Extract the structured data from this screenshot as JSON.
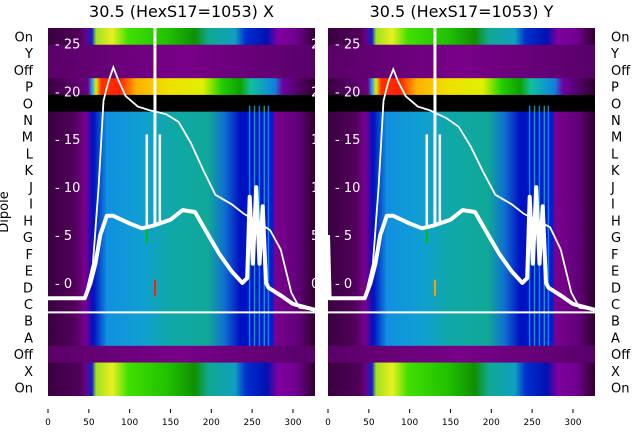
{
  "chart_data": {
    "type": "heatmap",
    "ylabel": "Dipole",
    "row_labels": [
      "On",
      "Y",
      "Off",
      "P",
      "O",
      "N",
      "M",
      "L",
      "K",
      "J",
      "I",
      "H",
      "G",
      "F",
      "E",
      "D",
      "C",
      "B",
      "A",
      "Off",
      "X",
      "On"
    ],
    "row_types": [
      "bright",
      "purple",
      "purple",
      "hot",
      "black",
      "mid",
      "mid",
      "mid",
      "mid",
      "mid",
      "mid",
      "mid",
      "mid",
      "mid",
      "mid",
      "mid",
      "mid",
      "mid",
      "mid",
      "purple",
      "bright",
      "bright"
    ],
    "xlim": [
      0,
      327
    ],
    "xticks": [
      "0",
      "50",
      "100",
      "150",
      "200",
      "250",
      "300"
    ],
    "xtick_values": [
      0,
      50,
      100,
      150,
      200,
      250,
      300
    ],
    "overlay_ylim": [
      -11.8,
      26.6
    ],
    "overlay_yticks": [
      "0",
      "5",
      "10",
      "15",
      "20",
      "25"
    ],
    "overlay_ytick_values": [
      0,
      5,
      10,
      15,
      20,
      25
    ],
    "panels": [
      {
        "title": "30.5 (HexS17=1053) X",
        "thin_line": [
          [
            0,
            -1.6
          ],
          [
            45,
            -1.6
          ],
          [
            55,
            2
          ],
          [
            62,
            10
          ],
          [
            68,
            19
          ],
          [
            74,
            21
          ],
          [
            80,
            22.5
          ],
          [
            86,
            21.2
          ],
          [
            95,
            19.5
          ],
          [
            110,
            18.4
          ],
          [
            125,
            18
          ],
          [
            135,
            17.8
          ],
          [
            145,
            17.6
          ],
          [
            160,
            16.8
          ],
          [
            175,
            14.6
          ],
          [
            190,
            11.8
          ],
          [
            205,
            9.2
          ],
          [
            225,
            8.2
          ],
          [
            240,
            7.2
          ],
          [
            255,
            6.5
          ],
          [
            272,
            5.5
          ],
          [
            285,
            3.5
          ],
          [
            298,
            -1
          ],
          [
            308,
            -2.6
          ],
          [
            327,
            -2.8
          ]
        ],
        "thick_line": [
          [
            0,
            -1.6
          ],
          [
            45,
            -1.6
          ],
          [
            52,
            0
          ],
          [
            58,
            2
          ],
          [
            64,
            5
          ],
          [
            72,
            7
          ],
          [
            80,
            7
          ],
          [
            90,
            6.6
          ],
          [
            100,
            6.2
          ],
          [
            115,
            5.7
          ],
          [
            130,
            6
          ],
          [
            150,
            6.6
          ],
          [
            165,
            7.6
          ],
          [
            180,
            7.4
          ],
          [
            195,
            5.2
          ],
          [
            210,
            3
          ],
          [
            225,
            1.2
          ],
          [
            238,
            0
          ],
          [
            244,
            0.5
          ],
          [
            247,
            9
          ],
          [
            251,
            2
          ],
          [
            255,
            10
          ],
          [
            259,
            2
          ],
          [
            263,
            8
          ],
          [
            267,
            0
          ],
          [
            270,
            -0.5
          ],
          [
            285,
            -1.3
          ],
          [
            300,
            -2.2
          ],
          [
            327,
            -2.8
          ]
        ],
        "spikes": [
          [
            121,
            15.5
          ],
          [
            131,
            26.6
          ],
          [
            137,
            15.5
          ]
        ],
        "markers": [
          {
            "x": 121,
            "y": 5,
            "color": "#00c000"
          },
          {
            "x": 131,
            "y": -0.5,
            "color": "#ff2000"
          }
        ]
      },
      {
        "title": "30.5 (HexS17=1053) Y",
        "thin_line": [
          [
            0,
            -1.6
          ],
          [
            45,
            -1.6
          ],
          [
            55,
            2
          ],
          [
            62,
            10
          ],
          [
            68,
            19
          ],
          [
            74,
            21
          ],
          [
            80,
            22.3
          ],
          [
            86,
            21
          ],
          [
            95,
            19.5
          ],
          [
            110,
            18.4
          ],
          [
            125,
            18
          ],
          [
            135,
            17.6
          ],
          [
            145,
            17.2
          ],
          [
            160,
            16.3
          ],
          [
            175,
            14.2
          ],
          [
            190,
            11.6
          ],
          [
            205,
            9.2
          ],
          [
            225,
            8.2
          ],
          [
            240,
            7.2
          ],
          [
            255,
            6.6
          ],
          [
            272,
            5.8
          ],
          [
            285,
            3.5
          ],
          [
            298,
            -1
          ],
          [
            308,
            -2.6
          ],
          [
            327,
            -2.8
          ]
        ],
        "thick_line": [
          [
            0,
            5
          ],
          [
            2,
            -1.6
          ],
          [
            45,
            -1.6
          ],
          [
            52,
            0
          ],
          [
            58,
            2
          ],
          [
            64,
            5
          ],
          [
            72,
            7
          ],
          [
            80,
            7
          ],
          [
            90,
            6.6
          ],
          [
            100,
            6.2
          ],
          [
            115,
            5.7
          ],
          [
            130,
            6
          ],
          [
            150,
            6.6
          ],
          [
            165,
            7.6
          ],
          [
            180,
            7.4
          ],
          [
            195,
            5.2
          ],
          [
            210,
            3
          ],
          [
            225,
            1.2
          ],
          [
            238,
            0
          ],
          [
            244,
            0.5
          ],
          [
            247,
            9
          ],
          [
            251,
            2
          ],
          [
            255,
            10
          ],
          [
            259,
            2
          ],
          [
            263,
            8
          ],
          [
            267,
            0
          ],
          [
            270,
            -0.5
          ],
          [
            285,
            -1.3
          ],
          [
            300,
            -2.2
          ],
          [
            327,
            -2.8
          ]
        ],
        "spikes": [
          [
            121,
            15.5
          ],
          [
            131,
            26.6
          ],
          [
            137,
            15.5
          ]
        ],
        "markers": [
          {
            "x": 121,
            "y": 5,
            "color": "#00c000"
          },
          {
            "x": 131,
            "y": -0.5,
            "color": "#ffa000"
          }
        ]
      }
    ],
    "hline_between_rows": [
      "C",
      "B"
    ]
  }
}
